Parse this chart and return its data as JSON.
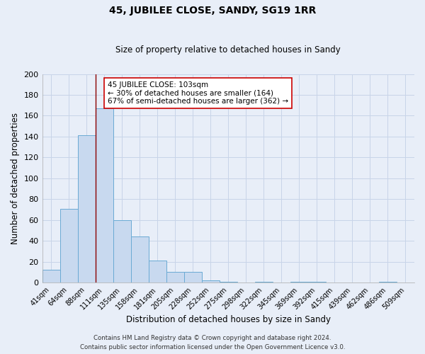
{
  "title": "45, JUBILEE CLOSE, SANDY, SG19 1RR",
  "subtitle": "Size of property relative to detached houses in Sandy",
  "xlabel": "Distribution of detached houses by size in Sandy",
  "ylabel": "Number of detached properties",
  "categories": [
    "41sqm",
    "64sqm",
    "88sqm",
    "111sqm",
    "135sqm",
    "158sqm",
    "181sqm",
    "205sqm",
    "228sqm",
    "252sqm",
    "275sqm",
    "298sqm",
    "322sqm",
    "345sqm",
    "369sqm",
    "392sqm",
    "415sqm",
    "439sqm",
    "462sqm",
    "486sqm",
    "509sqm"
  ],
  "values": [
    12,
    71,
    141,
    167,
    60,
    44,
    21,
    10,
    10,
    2,
    1,
    0,
    1,
    0,
    1,
    1,
    0,
    0,
    0,
    1,
    0
  ],
  "bar_color": "#c8d9ef",
  "bar_edge_color": "#6aaad4",
  "grid_color": "#c8d4e8",
  "background_color": "#e8eef8",
  "vline_color": "#8b0000",
  "ylim": [
    0,
    200
  ],
  "yticks": [
    0,
    20,
    40,
    60,
    80,
    100,
    120,
    140,
    160,
    180,
    200
  ],
  "annotation_text": "45 JUBILEE CLOSE: 103sqm\n← 30% of detached houses are smaller (164)\n67% of semi-detached houses are larger (362) →",
  "annotation_box_color": "#ffffff",
  "annotation_box_edge": "#cc0000",
  "footer_line1": "Contains HM Land Registry data © Crown copyright and database right 2024.",
  "footer_line2": "Contains public sector information licensed under the Open Government Licence v3.0."
}
